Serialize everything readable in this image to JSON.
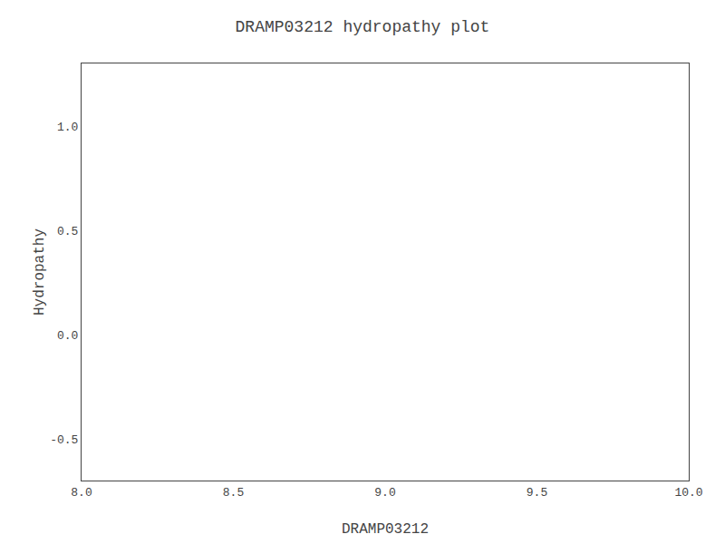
{
  "chart_data": {
    "type": "line",
    "title": "DRAMP03212 hydropathy plot",
    "xlabel": "DRAMP03212",
    "ylabel": "Hydropathy",
    "series": [],
    "xlim": [
      8.0,
      10.0
    ],
    "ylim": [
      -0.7,
      1.3
    ],
    "xticks": [
      {
        "value": 8.0,
        "label": "8.0"
      },
      8.5,
      {
        "value": 9.0,
        "label": "9.0"
      },
      9.5,
      {
        "value": 10.0,
        "label": "10.0"
      }
    ],
    "yticks": [
      -0.5,
      {
        "value": 0.0,
        "label": "0.0"
      },
      0.5,
      {
        "value": 1.0,
        "label": "1.0"
      }
    ],
    "grid": false
  }
}
